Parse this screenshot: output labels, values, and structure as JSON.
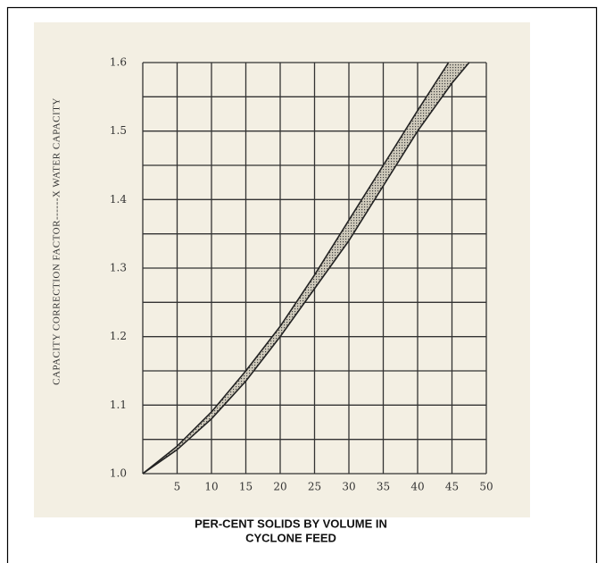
{
  "chart_data": {
    "type": "band",
    "y_label": "CAPACITY CORRECTION FACTOR------X WATER CAPACITY",
    "x_label": [
      "PER-CENT SOLIDS BY VOLUME IN",
      "CYCLONE FEED"
    ],
    "xlim": [
      0,
      50
    ],
    "ylim": [
      1.0,
      1.6
    ],
    "xticks": [
      5,
      10,
      15,
      20,
      25,
      30,
      35,
      40,
      45,
      50
    ],
    "yticks": [
      {
        "value": 1.0,
        "label": "1.0"
      },
      1.1,
      1.2,
      1.3,
      1.4,
      1.5,
      1.6
    ],
    "xgrid": [
      0,
      5,
      10,
      15,
      20,
      25,
      30,
      35,
      40,
      45,
      50
    ],
    "ygrid": [
      1.0,
      1.05,
      1.1,
      1.15,
      1.2,
      1.25,
      1.3,
      1.35,
      1.4,
      1.45,
      1.5,
      1.55,
      1.6
    ],
    "grid": true,
    "color": "#222222",
    "series": [
      {
        "x": [
          0,
          5,
          10,
          15,
          20,
          25,
          30,
          35,
          40,
          44.5
        ],
        "values": [
          1.0,
          1.04,
          1.09,
          1.15,
          1.215,
          1.29,
          1.37,
          1.45,
          1.53,
          1.6
        ]
      },
      {
        "x": [
          0,
          5,
          10,
          15,
          20,
          25,
          30,
          35,
          40,
          45,
          47.5
        ],
        "values": [
          1.0,
          1.035,
          1.08,
          1.135,
          1.2,
          1.27,
          1.34,
          1.42,
          1.5,
          1.57,
          1.6
        ]
      }
    ]
  }
}
